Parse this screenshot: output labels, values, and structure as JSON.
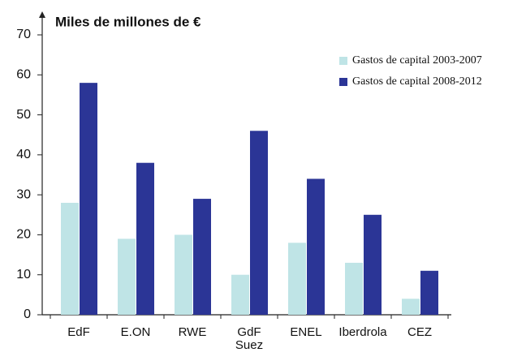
{
  "chart_data": {
    "type": "bar",
    "y_label": "Miles de millones de €",
    "categories": [
      "EdF",
      "E.ON",
      "RWE",
      "GdF Suez",
      "ENEL",
      "Iberdrola",
      "CEZ"
    ],
    "series": [
      {
        "name": "Gastos de capital 2003-2007",
        "color": "#bfe4e6",
        "values": [
          28,
          19,
          20,
          10,
          18,
          13,
          4
        ]
      },
      {
        "name": "Gastos de capital 2008-2012",
        "color": "#2b3596",
        "values": [
          58,
          38,
          29,
          46,
          34,
          25,
          11
        ]
      }
    ],
    "ylim": [
      0,
      70
    ],
    "yticks": [
      0,
      10,
      20,
      30,
      40,
      50,
      60,
      70
    ],
    "legend": "upper right"
  }
}
